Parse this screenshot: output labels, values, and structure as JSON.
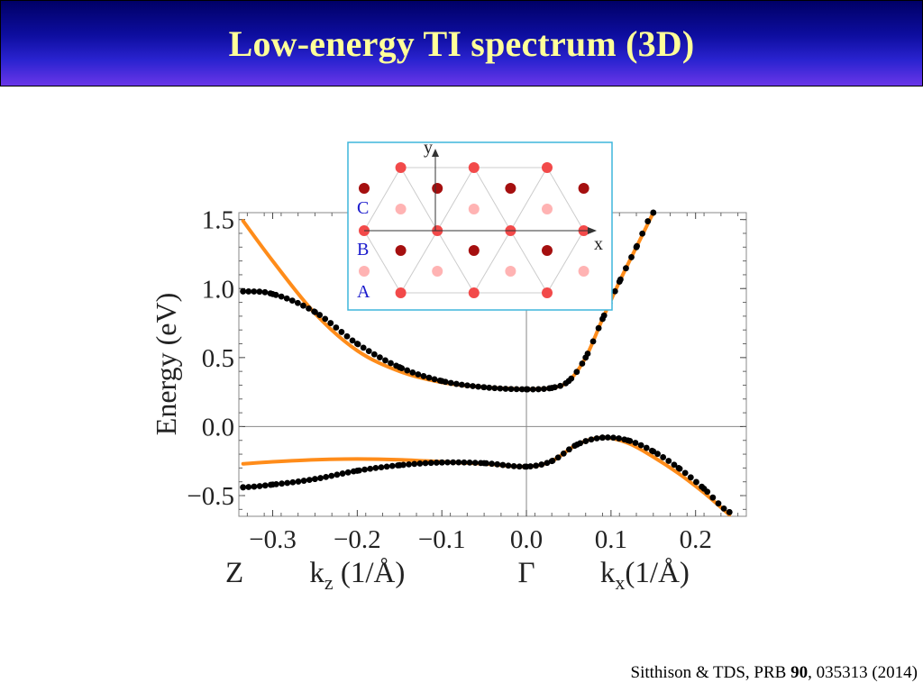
{
  "slide": {
    "title": "Low-energy TI spectrum (3D)"
  },
  "citation": {
    "authors": "Sitthison & TDS, PRB ",
    "volume": "90",
    "rest": ", 035313 (2014)"
  },
  "colors": {
    "title_bg": "#1a1ab8",
    "title_text": "#ffff99",
    "fit_line": "#ff8c1a",
    "dots": "#000000",
    "inset_border": "#3fb6dc",
    "atom_A": "#ffb3b3",
    "atom_B": "#f24a4a",
    "atom_C": "#a50f0f",
    "label_blue": "#1a1acc"
  },
  "chart_data": {
    "type": "line",
    "ylabel": "Energy (eV)",
    "xlim": [
      -0.34,
      0.26
    ],
    "ylim": [
      -0.65,
      1.55
    ],
    "grid": false,
    "x_ticks": [
      -0.3,
      -0.2,
      -0.1,
      0.0,
      0.1,
      0.2
    ],
    "x_tick_labels": [
      "−0.3",
      "−0.2",
      "−0.1",
      "0.0",
      "0.1",
      "0.2"
    ],
    "y_ticks": [
      -0.5,
      0.0,
      0.5,
      1.0,
      1.5
    ],
    "y_tick_labels": [
      "−0.5",
      "0.0",
      "0.5",
      "1.0",
      "1.5"
    ],
    "reference_lines": {
      "x": 0.0,
      "y": 0.0
    },
    "path_labels": [
      {
        "x": -0.34,
        "text": "Z"
      },
      {
        "x": -0.2,
        "text": "k",
        "sub": "z",
        "after": " (1/Å)"
      },
      {
        "x": 0.0,
        "text": "Γ"
      },
      {
        "x": 0.14,
        "text": "k",
        "sub": "x",
        "after": "(1/Å)"
      }
    ],
    "series": [
      {
        "style": "line",
        "x": [
          -0.335,
          -0.3,
          -0.25,
          -0.2,
          -0.15,
          -0.1,
          -0.05,
          0.0
        ],
        "y": [
          1.49,
          1.2,
          0.82,
          0.55,
          0.4,
          0.32,
          0.285,
          0.27
        ]
      },
      {
        "style": "line",
        "x": [
          0.0,
          0.03,
          0.05,
          0.07,
          0.09,
          0.11,
          0.13,
          0.15
        ],
        "y": [
          0.27,
          0.28,
          0.33,
          0.5,
          0.78,
          1.05,
          1.3,
          1.55
        ]
      },
      {
        "style": "line",
        "x": [
          -0.335,
          -0.3,
          -0.25,
          -0.2,
          -0.15,
          -0.1,
          -0.05,
          0.0,
          0.03,
          0.06,
          0.09,
          0.12,
          0.15,
          0.18,
          0.21,
          0.24
        ],
        "y": [
          -0.27,
          -0.255,
          -0.24,
          -0.235,
          -0.24,
          -0.255,
          -0.27,
          -0.29,
          -0.25,
          -0.13,
          -0.08,
          -0.12,
          -0.22,
          -0.34,
          -0.48,
          -0.64
        ]
      },
      {
        "style": "dots",
        "x": [
          -0.335,
          -0.3,
          -0.25,
          -0.2,
          -0.15,
          -0.1,
          -0.05,
          0.0,
          0.03,
          0.05,
          0.07,
          0.09,
          0.11,
          0.13,
          0.15
        ],
        "y": [
          0.98,
          0.96,
          0.83,
          0.6,
          0.43,
          0.33,
          0.285,
          0.27,
          0.28,
          0.33,
          0.5,
          0.78,
          1.05,
          1.3,
          1.55
        ]
      },
      {
        "style": "dots",
        "x": [
          -0.335,
          -0.3,
          -0.25,
          -0.2,
          -0.15,
          -0.1,
          -0.05,
          0.0,
          0.03,
          0.06,
          0.09,
          0.12,
          0.15,
          0.18,
          0.21,
          0.24
        ],
        "y": [
          -0.44,
          -0.42,
          -0.38,
          -0.32,
          -0.28,
          -0.26,
          -0.265,
          -0.29,
          -0.25,
          -0.13,
          -0.08,
          -0.1,
          -0.18,
          -0.3,
          -0.45,
          -0.62
        ]
      }
    ]
  },
  "inset": {
    "axis_x": "x",
    "axis_y": "y",
    "layer_labels": [
      "C",
      "B",
      "A"
    ],
    "rows": [
      {
        "type": "B",
        "xs": [
          1,
          3,
          5
        ]
      },
      {
        "type": "C",
        "xs": [
          0,
          2,
          4,
          6
        ]
      },
      {
        "type": "A",
        "xs": [
          1,
          3,
          5
        ]
      },
      {
        "type": "B",
        "xs": [
          0,
          2,
          4,
          6
        ]
      },
      {
        "type": "C",
        "xs": [
          1,
          3,
          5
        ]
      },
      {
        "type": "A",
        "xs": [
          0,
          2,
          4,
          6
        ]
      },
      {
        "type": "B",
        "xs": [
          1,
          3,
          5
        ]
      }
    ]
  }
}
